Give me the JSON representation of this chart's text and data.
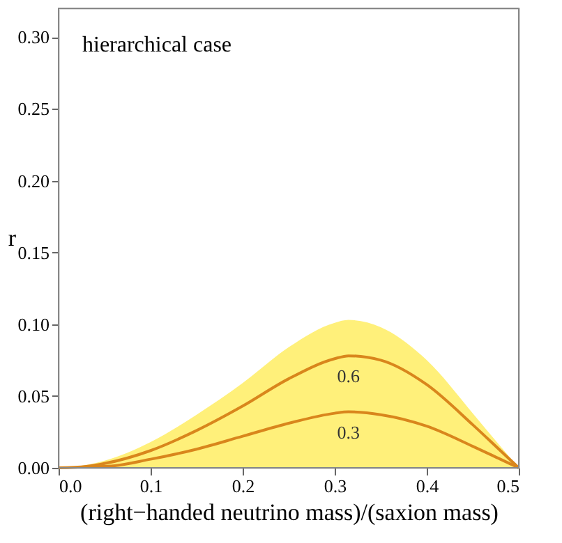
{
  "chart_data": {
    "type": "line",
    "xlabel": "(right−handed neutrino mass)/(saxion mass)",
    "ylabel": "r",
    "x": [
      0,
      0.03,
      0.05,
      0.1,
      0.15,
      0.2,
      0.25,
      0.3,
      0.315,
      0.35,
      0.4,
      0.45,
      0.48,
      0.5
    ],
    "series": [
      {
        "type": "area",
        "color": "#fff07a",
        "values": [
          0,
          0.002,
          0.005,
          0.018,
          0.037,
          0.059,
          0.084,
          0.101,
          0.103,
          0.098,
          0.075,
          0.038,
          0.015,
          0
        ]
      },
      {
        "name": "0.6",
        "color": "#d9861c",
        "values": [
          0,
          0.001,
          0.003,
          0.012,
          0.026,
          0.043,
          0.062,
          0.076,
          0.078,
          0.075,
          0.058,
          0.03,
          0.012,
          0
        ]
      },
      {
        "name": "0.3",
        "color": "#d9861c",
        "values": [
          null,
          0.001,
          0.001,
          0.006,
          0.013,
          0.022,
          0.031,
          0.038,
          0.039,
          0.037,
          0.029,
          0.015,
          0.006,
          0
        ]
      }
    ],
    "annotations": [
      "hierarchical case"
    ],
    "xlim": [
      0,
      0.5
    ],
    "xticks": [
      {
        "value": 0,
        "label": "0.0"
      },
      0.1,
      0.2,
      0.3,
      0.4,
      0.5
    ],
    "ylim": [
      0,
      0.32
    ],
    "yticks": [
      {
        "value": 0,
        "label": "0.00"
      },
      0.05,
      {
        "value": 0.1,
        "label": "0.10"
      },
      0.15,
      {
        "value": 0.2,
        "label": "0.20"
      },
      0.25,
      {
        "value": 0.3,
        "label": "0.30"
      }
    ],
    "grid": false
  }
}
